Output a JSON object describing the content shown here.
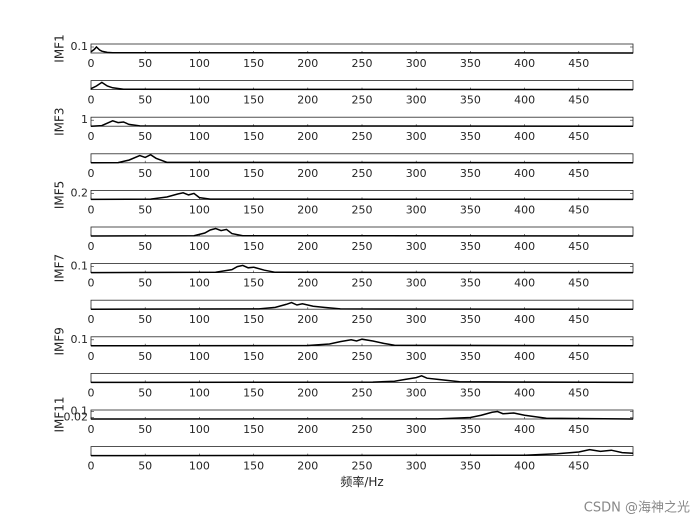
{
  "chart_data": [
    {
      "type": "line",
      "ylabel": "IMF1",
      "xlim": [
        0,
        500
      ],
      "xticks": [
        0,
        50,
        100,
        150,
        200,
        250,
        300,
        350,
        400,
        450
      ],
      "ylim": [
        0,
        0.15
      ],
      "yticks": [
        0.1
      ],
      "color": "#000000",
      "x": [
        0,
        3,
        5,
        8,
        10,
        15,
        20,
        500
      ],
      "values": [
        0.02,
        0.06,
        0.1,
        0.05,
        0.03,
        0.01,
        0.005,
        0
      ]
    },
    {
      "type": "line",
      "xlim": [
        0,
        500
      ],
      "xticks": [
        0,
        50,
        100,
        150,
        200,
        250,
        300,
        350,
        400,
        450
      ],
      "ylim": [
        0,
        0.5
      ],
      "color": "#000000",
      "x": [
        0,
        5,
        10,
        15,
        20,
        30,
        500
      ],
      "values": [
        0.05,
        0.2,
        0.4,
        0.2,
        0.1,
        0.02,
        0
      ]
    },
    {
      "type": "line",
      "ylabel": "IMF3",
      "xlim": [
        0,
        500
      ],
      "xticks": [
        0,
        50,
        100,
        150,
        200,
        250,
        300,
        350,
        400,
        450
      ],
      "ylim": [
        0,
        1.5
      ],
      "yticks": [
        1
      ],
      "color": "#000000",
      "x": [
        0,
        10,
        15,
        20,
        25,
        30,
        35,
        45,
        500
      ],
      "values": [
        0,
        0.1,
        0.5,
        0.9,
        0.6,
        0.7,
        0.3,
        0.05,
        0
      ]
    },
    {
      "type": "line",
      "xlim": [
        0,
        500
      ],
      "xticks": [
        0,
        50,
        100,
        150,
        200,
        250,
        300,
        350,
        400,
        450
      ],
      "ylim": [
        0,
        1
      ],
      "color": "#000000",
      "x": [
        0,
        25,
        35,
        45,
        50,
        55,
        60,
        70,
        500
      ],
      "values": [
        0,
        0.02,
        0.3,
        0.8,
        0.6,
        0.9,
        0.5,
        0.05,
        0
      ]
    },
    {
      "type": "line",
      "ylabel": "IMF5",
      "xlim": [
        0,
        500
      ],
      "xticks": [
        0,
        50,
        100,
        150,
        200,
        250,
        300,
        350,
        400,
        450
      ],
      "ylim": [
        0,
        0.3
      ],
      "yticks": [
        0.2
      ],
      "color": "#000000",
      "x": [
        0,
        55,
        70,
        80,
        85,
        90,
        95,
        100,
        110,
        500
      ],
      "values": [
        0,
        0.01,
        0.08,
        0.18,
        0.22,
        0.15,
        0.2,
        0.06,
        0.01,
        0
      ]
    },
    {
      "type": "line",
      "xlim": [
        0,
        500
      ],
      "xticks": [
        0,
        50,
        100,
        150,
        200,
        250,
        300,
        350,
        400,
        450
      ],
      "ylim": [
        0,
        0.3
      ],
      "color": "#000000",
      "x": [
        0,
        95,
        105,
        110,
        115,
        120,
        125,
        130,
        140,
        500
      ],
      "values": [
        0,
        0.01,
        0.1,
        0.2,
        0.25,
        0.18,
        0.22,
        0.08,
        0.01,
        0
      ]
    },
    {
      "type": "line",
      "ylabel": "IMF7",
      "xlim": [
        0,
        500
      ],
      "xticks": [
        0,
        50,
        100,
        150,
        200,
        250,
        300,
        350,
        400,
        450
      ],
      "ylim": [
        0,
        0.15
      ],
      "yticks": [
        0.1
      ],
      "color": "#000000",
      "x": [
        0,
        115,
        130,
        135,
        140,
        145,
        150,
        160,
        170,
        500
      ],
      "values": [
        0,
        0.005,
        0.05,
        0.1,
        0.12,
        0.08,
        0.09,
        0.04,
        0.005,
        0
      ]
    },
    {
      "type": "line",
      "xlim": [
        0,
        500
      ],
      "xticks": [
        0,
        50,
        100,
        150,
        200,
        250,
        300,
        350,
        400,
        450
      ],
      "ylim": [
        0,
        0.15
      ],
      "color": "#000000",
      "x": [
        0,
        155,
        170,
        180,
        185,
        190,
        195,
        205,
        215,
        230,
        500
      ],
      "values": [
        0,
        0.005,
        0.03,
        0.08,
        0.11,
        0.07,
        0.09,
        0.05,
        0.03,
        0.005,
        0
      ]
    },
    {
      "type": "line",
      "ylabel": "IMF9",
      "xlim": [
        0,
        500
      ],
      "xticks": [
        0,
        50,
        100,
        150,
        200,
        250,
        300,
        350,
        400,
        450
      ],
      "ylim": [
        0,
        0.15
      ],
      "yticks": [
        0.1
      ],
      "color": "#000000",
      "x": [
        0,
        200,
        220,
        230,
        240,
        245,
        250,
        260,
        270,
        280,
        500
      ],
      "values": [
        0,
        0.005,
        0.03,
        0.07,
        0.1,
        0.08,
        0.11,
        0.08,
        0.04,
        0.01,
        0
      ]
    },
    {
      "type": "line",
      "xlim": [
        0,
        500
      ],
      "xticks": [
        0,
        50,
        100,
        150,
        200,
        250,
        300,
        350,
        400,
        450
      ],
      "ylim": [
        0,
        0.15
      ],
      "color": "#000000",
      "x": [
        0,
        260,
        280,
        290,
        300,
        305,
        310,
        320,
        340,
        500
      ],
      "values": [
        0,
        0.005,
        0.02,
        0.05,
        0.08,
        0.11,
        0.07,
        0.05,
        0.01,
        0
      ]
    },
    {
      "type": "line",
      "ylabel": "IMF11",
      "xlim": [
        0,
        500
      ],
      "xticks": [
        0,
        50,
        100,
        150,
        200,
        250,
        300,
        350,
        400,
        450
      ],
      "ylim": [
        0,
        0.12
      ],
      "yticks": [
        0.02,
        0.1
      ],
      "color": "#000000",
      "x": [
        0,
        320,
        350,
        360,
        370,
        375,
        380,
        390,
        400,
        420,
        500
      ],
      "values": [
        0,
        0.002,
        0.02,
        0.05,
        0.09,
        0.1,
        0.07,
        0.08,
        0.05,
        0.01,
        0
      ]
    },
    {
      "type": "line",
      "xlabel": "频率/Hz",
      "xlim": [
        0,
        500
      ],
      "xticks": [
        0,
        50,
        100,
        150,
        200,
        250,
        300,
        350,
        400,
        450
      ],
      "ylim": [
        0,
        0.15
      ],
      "color": "#000000",
      "x": [
        0,
        400,
        430,
        450,
        460,
        470,
        480,
        490,
        500
      ],
      "values": [
        0,
        0.005,
        0.03,
        0.06,
        0.1,
        0.07,
        0.09,
        0.05,
        0.04
      ]
    }
  ],
  "watermark": "CSDN @海神之光"
}
